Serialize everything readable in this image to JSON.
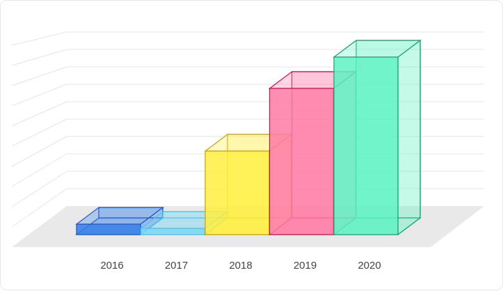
{
  "chart_data": {
    "type": "bar",
    "style": "3d-glass-columns",
    "categories": [
      "2016",
      "2017",
      "2018",
      "2019",
      "2020"
    ],
    "values": [
      0.5,
      0.3,
      4.0,
      7.0,
      8.5
    ],
    "ylim": [
      0,
      10
    ],
    "grid": true,
    "legend": "none",
    "title": "",
    "xlabel": "",
    "ylabel": "",
    "colors": [
      {
        "fill": "#2f7be8",
        "edge": "#1f5fd0"
      },
      {
        "fill": "#7ad8f3",
        "edge": "#4cc6ee"
      },
      {
        "fill": "#ffee3f",
        "edge": "#c9a70c"
      },
      {
        "fill": "#ff7aa6",
        "edge": "#cc1a5e"
      },
      {
        "fill": "#5ef2c2",
        "edge": "#1ea877"
      }
    ],
    "floor_color": "#e9e9e9",
    "grid_color": "#e5e5e5"
  }
}
